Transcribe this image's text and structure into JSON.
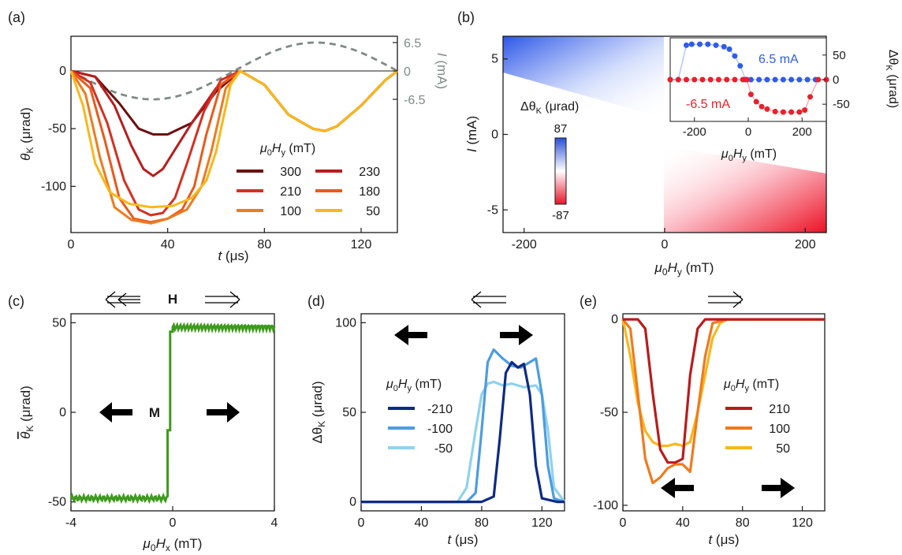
{
  "colors": {
    "c300": "#6b1010",
    "c230": "#b91c1c",
    "c210": "#d63020",
    "c180": "#ea5a1a",
    "c100": "#f07a1e",
    "c50": "#f7b81c",
    "gray_current": "#7f8a86",
    "green": "#3d9a1c",
    "blue_dark": "#0e2a86",
    "blue_mid": "#4d9ce0",
    "blue_light": "#8fd2ee",
    "red_6p5": "#e8202a",
    "blue_6p5": "#2f5ce8"
  },
  "chart_data": [
    {
      "id": "a",
      "type": "line",
      "panel_label": "(a)",
      "xlabel_var": "t",
      "xlabel_unit": " (μs)",
      "ylabel_var": "θ",
      "ylabel_sub": "K",
      "ylabel_unit": " (μrad)",
      "xlim": [
        0,
        135
      ],
      "ylim": [
        -140,
        30
      ],
      "xticks": [
        0,
        40,
        80,
        120
      ],
      "yticks": [
        0,
        -50,
        -100
      ],
      "right_axis": {
        "label_var": "I",
        "label_unit": " (mA)",
        "ticks": [
          "6.5",
          "0",
          "-6.5"
        ]
      },
      "legend_title_var": "μ",
      "legend_title_sub": "0",
      "legend_title_var2": "H",
      "legend_title_sub2": "y",
      "legend_title_unit": " (mT)",
      "series": [
        {
          "name": "300",
          "color": "#6b1010",
          "x": [
            0,
            10,
            20,
            28,
            34,
            40,
            50,
            60,
            70,
            80,
            90,
            100,
            105,
            110,
            120,
            130,
            135
          ],
          "y": [
            0,
            -5,
            -28,
            -50,
            -55,
            -55,
            -45,
            -18,
            0,
            -12,
            -38,
            -50,
            -52,
            -48,
            -30,
            -8,
            0
          ]
        },
        {
          "name": "230",
          "color": "#b91c1c",
          "x": [
            0,
            10,
            18,
            25,
            30,
            34,
            38,
            44,
            50,
            60,
            70,
            80,
            90,
            100,
            105,
            110,
            120,
            130,
            135
          ],
          "y": [
            0,
            -5,
            -30,
            -65,
            -85,
            -91,
            -85,
            -65,
            -45,
            -15,
            0,
            -12,
            -38,
            -50,
            -52,
            -48,
            -30,
            -8,
            0
          ]
        },
        {
          "name": "210",
          "color": "#d63020",
          "x": [
            0,
            8,
            15,
            22,
            28,
            33,
            38,
            43,
            48,
            55,
            62,
            70,
            80,
            90,
            100,
            105,
            110,
            120,
            130,
            135
          ],
          "y": [
            0,
            -10,
            -45,
            -95,
            -120,
            -125,
            -123,
            -110,
            -80,
            -35,
            -8,
            0,
            -12,
            -38,
            -50,
            -52,
            -48,
            -30,
            -8,
            0
          ]
        },
        {
          "name": "180",
          "color": "#ea5a1a",
          "x": [
            0,
            8,
            14,
            20,
            26,
            33,
            40,
            46,
            51,
            56,
            62,
            70,
            80,
            90,
            100,
            105,
            110,
            120,
            130,
            135
          ],
          "y": [
            0,
            -15,
            -60,
            -110,
            -128,
            -131,
            -128,
            -120,
            -100,
            -55,
            -12,
            0,
            -12,
            -38,
            -50,
            -52,
            -48,
            -30,
            -8,
            0
          ]
        },
        {
          "name": "100",
          "color": "#f07a1e",
          "x": [
            0,
            6,
            12,
            18,
            25,
            33,
            40,
            48,
            54,
            58,
            64,
            70,
            80,
            90,
            100,
            105,
            110,
            120,
            130,
            135
          ],
          "y": [
            0,
            -20,
            -75,
            -118,
            -129,
            -132,
            -128,
            -120,
            -100,
            -70,
            -15,
            0,
            -12,
            -38,
            -50,
            -52,
            -48,
            -30,
            -8,
            0
          ]
        },
        {
          "name": "50",
          "color": "#f7b81c",
          "x": [
            0,
            5,
            10,
            16,
            24,
            33,
            42,
            50,
            56,
            60,
            66,
            70,
            80,
            90,
            100,
            105,
            110,
            120,
            130,
            135
          ],
          "y": [
            0,
            -30,
            -80,
            -105,
            -115,
            -118,
            -117,
            -110,
            -95,
            -70,
            -12,
            0,
            -12,
            -38,
            -50,
            -52,
            -48,
            -30,
            -8,
            0
          ]
        }
      ],
      "current_series": {
        "name": "I",
        "x_period": 135,
        "amplitude": 6.5
      }
    },
    {
      "id": "b",
      "type": "heatmap",
      "panel_label": "(b)",
      "xlabel_var": "μ",
      "xlabel_sub": "0",
      "xlabel_var2": "H",
      "xlabel_sub2": "y",
      "xlabel_unit": " (mT)",
      "ylabel_var": "I",
      "ylabel_unit": " (mA)",
      "xlim": [
        -230,
        230
      ],
      "ylim": [
        -6.5,
        6.5
      ],
      "xticks": [
        -200,
        0,
        200
      ],
      "yticks": [
        5,
        0,
        -5
      ],
      "colorbar": {
        "label_prefix": "Δθ",
        "label_sub": "K",
        "label_unit": " (μrad)",
        "max": "87",
        "min": "-87"
      },
      "inset": {
        "xlabel_var": "μ",
        "xlabel_sub": "0",
        "xlabel_var2": "H",
        "xlabel_sub2": "y",
        "xlabel_unit": " (mT)",
        "ylabel_prefix": "Δθ",
        "ylabel_sub": "K",
        "ylabel_unit": " (μrad)",
        "xticks": [
          -200,
          0,
          200
        ],
        "yticks": [
          50,
          0,
          -50
        ],
        "xlim": [
          -290,
          290
        ],
        "ylim": [
          -85,
          85
        ],
        "series": [
          {
            "name": "6.5 mA",
            "color": "#2f5ce8",
            "x": [
              -290,
              -260,
              -230,
              -210,
              -180,
              -150,
              -120,
              -90,
              -70,
              -50,
              -30,
              -10,
              10,
              40,
              70,
              100,
              130,
              160,
              190,
              220,
              250,
              290
            ],
            "y": [
              0,
              0,
              70,
              72,
              72,
              72,
              70,
              67,
              62,
              48,
              28,
              0,
              0,
              0,
              0,
              0,
              0,
              0,
              0,
              0,
              0,
              0
            ]
          },
          {
            "name": "-6.5 mA",
            "color": "#e8202a",
            "x": [
              -290,
              -260,
              -230,
              -200,
              -170,
              -140,
              -110,
              -80,
              -50,
              -20,
              -5,
              10,
              30,
              50,
              70,
              100,
              130,
              160,
              190,
              210,
              230,
              260,
              290
            ],
            "y": [
              0,
              0,
              0,
              0,
              0,
              0,
              0,
              0,
              0,
              0,
              0,
              -30,
              -45,
              -55,
              -60,
              -65,
              -66,
              -66,
              -66,
              -62,
              -35,
              0,
              0
            ]
          }
        ]
      }
    },
    {
      "id": "c",
      "type": "line",
      "panel_label": "(c)",
      "xlabel_var": "μ",
      "xlabel_sub": "0",
      "xlabel_var2": "H",
      "xlabel_sub2": "x",
      "xlabel_unit": " (mT)",
      "ylabel_var": "θ",
      "ylabel_sub": "K",
      "ylabel_unit": " (μrad)",
      "xlim": [
        -4,
        4
      ],
      "ylim": [
        -55,
        55
      ],
      "xticks": [
        -4,
        0,
        4
      ],
      "yticks": [
        50,
        0,
        -50
      ],
      "field_label": "H",
      "magnetization_label": "M",
      "series": [
        {
          "name": "sweep",
          "color": "#3d9a1c",
          "x": [
            -4,
            -0.2,
            -0.2,
            -0.1,
            -0.1,
            0,
            0,
            4
          ],
          "y": [
            -48,
            -48,
            -10,
            -10,
            45,
            45,
            47,
            47
          ]
        }
      ]
    },
    {
      "id": "d",
      "type": "line",
      "panel_label": "(d)",
      "xlabel_var": "t",
      "xlabel_unit": " (μs)",
      "ylabel_prefix": "Δθ",
      "ylabel_sub": "K",
      "ylabel_unit": " (μrad)",
      "xlim": [
        0,
        135
      ],
      "ylim": [
        -5,
        105
      ],
      "xticks": [
        0,
        40,
        80,
        120
      ],
      "yticks": [
        100,
        50,
        0
      ],
      "legend_title_var": "μ",
      "legend_title_sub": "0",
      "legend_title_var2": "H",
      "legend_title_sub2": "y",
      "legend_title_unit": " (mT)",
      "series": [
        {
          "name": "-210",
          "color": "#0e2a86",
          "x": [
            0,
            80,
            88,
            92,
            96,
            100,
            104,
            108,
            112,
            116,
            120,
            130,
            135
          ],
          "y": [
            0,
            0,
            3,
            35,
            72,
            78,
            75,
            77,
            60,
            20,
            2,
            0,
            0
          ]
        },
        {
          "name": "-100",
          "color": "#4d9ce0",
          "x": [
            0,
            70,
            76,
            80,
            84,
            88,
            94,
            100,
            106,
            112,
            116,
            120,
            124,
            128,
            135
          ],
          "y": [
            0,
            0,
            5,
            40,
            78,
            85,
            80,
            76,
            75,
            78,
            80,
            60,
            20,
            2,
            0
          ]
        },
        {
          "name": "-50",
          "color": "#8fd2ee",
          "x": [
            0,
            64,
            70,
            76,
            80,
            84,
            88,
            94,
            100,
            108,
            116,
            120,
            124,
            128,
            135
          ],
          "y": [
            0,
            0,
            8,
            40,
            60,
            66,
            67,
            65,
            66,
            64,
            65,
            60,
            40,
            8,
            0
          ]
        }
      ]
    },
    {
      "id": "e",
      "type": "line",
      "panel_label": "(e)",
      "xlabel_var": "t",
      "xlabel_unit": " (μs)",
      "xlim": [
        0,
        135
      ],
      "ylim": [
        -103,
        3
      ],
      "xticks": [
        0,
        40,
        80,
        120
      ],
      "yticks": [
        0,
        -50,
        -100
      ],
      "legend_title_var": "μ",
      "legend_title_sub": "0",
      "legend_title_var2": "H",
      "legend_title_sub2": "y",
      "legend_title_unit": " (mT)",
      "series": [
        {
          "name": "210",
          "color": "#b91c1c",
          "x": [
            0,
            10,
            15,
            20,
            25,
            30,
            35,
            40,
            45,
            50,
            55,
            70,
            100,
            135
          ],
          "y": [
            0,
            0,
            -5,
            -40,
            -70,
            -77,
            -77,
            -75,
            -30,
            -5,
            0,
            0,
            0,
            0
          ]
        },
        {
          "name": "100",
          "color": "#f07a1e",
          "x": [
            0,
            5,
            10,
            15,
            20,
            25,
            30,
            35,
            40,
            45,
            50,
            55,
            60,
            70,
            100,
            135
          ],
          "y": [
            0,
            -5,
            -40,
            -75,
            -88,
            -85,
            -80,
            -78,
            -78,
            -82,
            -50,
            -20,
            -2,
            0,
            0,
            0
          ]
        },
        {
          "name": "50",
          "color": "#f7b81c",
          "x": [
            0,
            5,
            10,
            15,
            20,
            25,
            30,
            35,
            40,
            45,
            50,
            55,
            60,
            65,
            70,
            100,
            135
          ],
          "y": [
            0,
            -20,
            -45,
            -60,
            -66,
            -68,
            -68,
            -67,
            -68,
            -66,
            -50,
            -30,
            -10,
            -2,
            0,
            0,
            0
          ]
        }
      ]
    }
  ]
}
